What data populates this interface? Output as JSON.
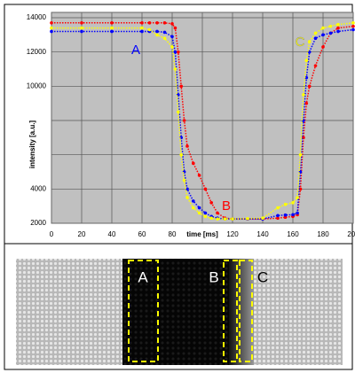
{
  "chart_data": {
    "type": "scatter",
    "xlabel": "time [ms]",
    "ylabel": "intensity [a.u.]",
    "x": [
      0,
      20,
      40,
      60,
      65,
      70,
      75,
      80,
      82,
      84,
      86,
      88,
      90,
      94,
      98,
      102,
      106,
      110,
      115,
      120,
      130,
      140,
      150,
      155,
      160,
      163,
      165,
      167,
      169,
      171,
      175,
      180,
      185,
      190,
      200
    ],
    "series": [
      {
        "color": "#ff0000",
        "values": [
          13700,
          13700,
          13700,
          13700,
          13700,
          13700,
          13700,
          13650,
          13400,
          12000,
          10000,
          8000,
          6500,
          5500,
          4800,
          4000,
          3200,
          2600,
          2300,
          2250,
          2250,
          2250,
          2300,
          2350,
          2400,
          2500,
          4000,
          7000,
          9000,
          10000,
          11200,
          12300,
          13100,
          13400,
          13500
        ]
      },
      {
        "color": "#0000ff",
        "values": [
          13200,
          13200,
          13200,
          13200,
          13200,
          13200,
          13150,
          12900,
          12000,
          9500,
          7000,
          5000,
          4000,
          3300,
          2900,
          2600,
          2400,
          2300,
          2250,
          2250,
          2250,
          2250,
          2450,
          2480,
          2500,
          2600,
          5000,
          8000,
          10500,
          12000,
          12800,
          13000,
          13100,
          13200,
          13300
        ]
      },
      {
        "color": "#ffff00",
        "values": [
          13400,
          13400,
          13400,
          13400,
          13300,
          13000,
          12800,
          12300,
          11000,
          8500,
          6000,
          4500,
          3500,
          2900,
          2600,
          2400,
          2300,
          2250,
          2250,
          2250,
          2270,
          2300,
          2900,
          3100,
          3200,
          3500,
          6000,
          9500,
          11500,
          12600,
          13100,
          13400,
          13500,
          13600,
          13700
        ]
      }
    ],
    "annotations": [
      {
        "text": "A",
        "color": "#0000ff"
      },
      {
        "text": "B",
        "color": "#ff0000"
      },
      {
        "text": "C",
        "color": "#ffff00"
      }
    ],
    "xlim": [
      0,
      200
    ],
    "xticks": [
      0,
      20,
      40,
      60,
      80,
      100,
      120,
      140,
      160,
      180,
      200
    ],
    "ylim": [
      2000,
      14000
    ],
    "yticks": [
      2000,
      4000,
      6000,
      8000,
      10000,
      12000,
      14000
    ],
    "grid": true,
    "plot_background": "#c0c0c0"
  },
  "image": {
    "labels": [
      "A",
      "B",
      "C"
    ]
  }
}
